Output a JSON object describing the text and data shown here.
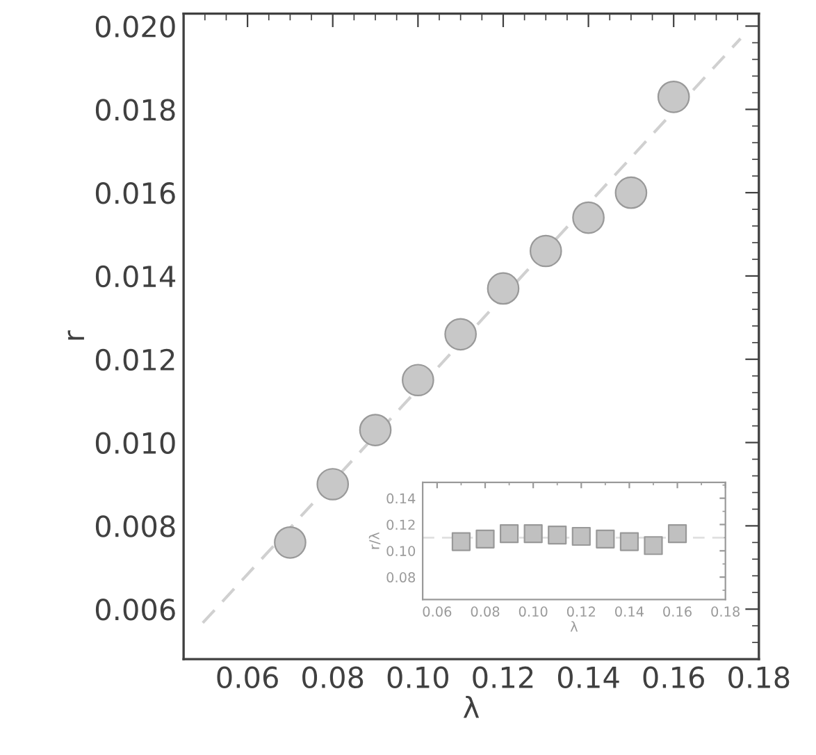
{
  "chart_data": [
    {
      "type": "scatter",
      "xlabel": "λ",
      "ylabel": "r",
      "marker": "circle",
      "xlim": [
        0.045,
        0.18
      ],
      "ylim": [
        0.0048,
        0.0203
      ],
      "xticks": [
        {
          "value": 0.06,
          "label": "0.06"
        },
        {
          "value": 0.08,
          "label": "0.08"
        },
        {
          "value": 0.1,
          "label": "0.10"
        },
        {
          "value": 0.12,
          "label": "0.12"
        },
        {
          "value": 0.14,
          "label": "0.14"
        },
        {
          "value": 0.16,
          "label": "0.16"
        },
        {
          "value": 0.18,
          "label": "0.18"
        }
      ],
      "yticks": [
        {
          "value": 0.006,
          "label": "0.006"
        },
        {
          "value": 0.008,
          "label": "0.008"
        },
        {
          "value": 0.01,
          "label": "0.010"
        },
        {
          "value": 0.012,
          "label": "0.012"
        },
        {
          "value": 0.014,
          "label": "0.014"
        },
        {
          "value": 0.016,
          "label": "0.016"
        },
        {
          "value": 0.018,
          "label": "0.018"
        },
        {
          "value": 0.02,
          "label": "0.020"
        }
      ],
      "grid": false,
      "legend": false,
      "series": [
        {
          "type": "line",
          "line_style": "dashed",
          "marker": "none",
          "color": "#d0d0d0",
          "x": [
            0.0495,
            0.1757
          ],
          "values": [
            0.00567,
            0.0197
          ]
        },
        {
          "color": "#c8c8c8",
          "x": [
            0.07,
            0.08,
            0.09,
            0.1,
            0.11,
            0.12,
            0.13,
            0.14,
            0.15,
            0.16
          ],
          "values": [
            0.0076,
            0.009,
            0.0103,
            0.0115,
            0.0126,
            0.0137,
            0.0146,
            0.0154,
            0.016,
            0.0183
          ]
        }
      ]
    },
    {
      "type": "scatter",
      "xlabel": "λ",
      "ylabel": "r/λ",
      "marker": "square",
      "xlim": [
        0.054,
        0.18
      ],
      "ylim": [
        0.063,
        0.152
      ],
      "xticks": [
        {
          "value": 0.06,
          "label": "0.06"
        },
        {
          "value": 0.08,
          "label": "0.08"
        },
        {
          "value": 0.1,
          "label": "0.10"
        },
        {
          "value": 0.12,
          "label": "0.12"
        },
        {
          "value": 0.14,
          "label": "0.14"
        },
        {
          "value": 0.16,
          "label": "0.16"
        },
        {
          "value": 0.18,
          "label": "0.18"
        }
      ],
      "yticks": [
        {
          "value": 0.08,
          "label": "0.08"
        },
        {
          "value": 0.1,
          "label": "0.10"
        },
        {
          "value": 0.12,
          "label": "0.12"
        },
        {
          "value": 0.14,
          "label": "0.14"
        }
      ],
      "grid": false,
      "legend": false,
      "ref_lines": [
        {
          "axis": "y",
          "value": 0.11,
          "color": "#e0e0e0",
          "line_style": "dashed"
        }
      ],
      "series": [
        {
          "color": "#c0c0c0",
          "x": [
            0.07,
            0.08,
            0.09,
            0.1,
            0.11,
            0.12,
            0.13,
            0.14,
            0.15,
            0.16
          ],
          "values": [
            0.107,
            0.109,
            0.113,
            0.113,
            0.112,
            0.111,
            0.109,
            0.107,
            0.104,
            0.113
          ]
        }
      ]
    }
  ]
}
